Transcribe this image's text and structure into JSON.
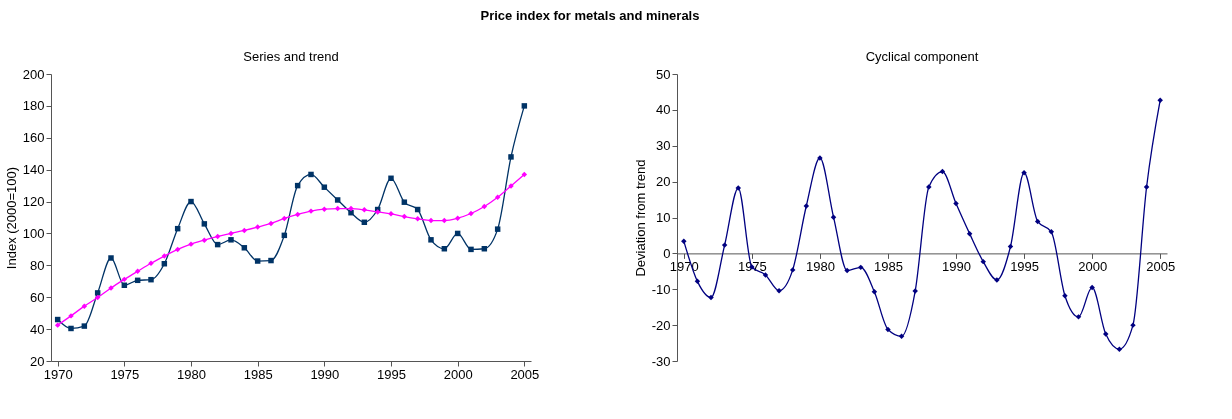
{
  "chart_data": [
    {
      "type": "line",
      "title": "Series and trend",
      "ylabel": "Index (2000=100)",
      "annotations": [
        "Price index for metals and minerals"
      ],
      "x": [
        1970,
        1971,
        1972,
        1973,
        1974,
        1975,
        1976,
        1977,
        1978,
        1979,
        1980,
        1981,
        1982,
        1983,
        1984,
        1985,
        1986,
        1987,
        1988,
        1989,
        1990,
        1991,
        1992,
        1993,
        1994,
        1995,
        1996,
        1997,
        1998,
        1999,
        2000,
        2001,
        2002,
        2003,
        2004,
        2005
      ],
      "series": [
        {
          "color": "#003366",
          "marker": "square",
          "values": [
            46,
            40.4,
            41.9,
            62.7,
            84.6,
            67.5,
            70.6,
            71,
            81,
            103,
            120,
            106,
            93,
            96,
            91,
            82.7,
            83,
            98.8,
            130,
            137,
            129,
            121,
            113,
            107,
            115,
            134.6,
            119.6,
            115,
            96,
            90.4,
            100,
            90,
            90.4,
            102.7,
            148,
            180
          ]
        },
        {
          "color": "#ff00ff",
          "marker": "diamond",
          "values": [
            42.5,
            48.3,
            54.4,
            59.8,
            65.8,
            71.2,
            76.3,
            81.3,
            85.8,
            90,
            93.3,
            95.8,
            98.1,
            100,
            101.9,
            104,
            106.3,
            109.4,
            111.9,
            114,
            115.2,
            115.6,
            115.6,
            114.8,
            113.5,
            112.3,
            110.6,
            109.2,
            108.1,
            108.1,
            109.6,
            112.5,
            116.9,
            122.7,
            129.8,
            137
          ]
        }
      ],
      "xlim": [
        1969.5,
        2005.5
      ],
      "xticks": [
        1970,
        1975,
        1980,
        1985,
        1990,
        1995,
        2000,
        2005
      ],
      "ylim": [
        20,
        200
      ],
      "yticks": [
        20,
        40,
        60,
        80,
        100,
        120,
        140,
        160,
        180,
        200
      ],
      "grid": false
    },
    {
      "type": "line",
      "title": "Cyclical component",
      "ylabel": "Deviation from trend",
      "x": [
        1970,
        1971,
        1972,
        1973,
        1974,
        1975,
        1976,
        1977,
        1978,
        1979,
        1980,
        1981,
        1982,
        1983,
        1984,
        1985,
        1986,
        1987,
        1988,
        1989,
        1990,
        1991,
        1992,
        1993,
        1994,
        1995,
        1996,
        1997,
        1998,
        1999,
        2000,
        2001,
        2002,
        2003,
        2004,
        2005
      ],
      "series": [
        {
          "color": "#000080",
          "marker": "diamond",
          "values": [
            3.4,
            -7.8,
            -12.3,
            2.3,
            18.2,
            -3.8,
            -6,
            -10.4,
            -4.6,
            13.2,
            26.6,
            10.1,
            -4.8,
            -3.9,
            -10.7,
            -21.2,
            -23.1,
            -10.5,
            18.5,
            22.8,
            13.9,
            5.5,
            -2.3,
            -7.4,
            1.9,
            22.5,
            8.9,
            6,
            -11.8,
            -17.7,
            -9.5,
            -22.5,
            -26.7,
            -20,
            18.5,
            42.7
          ]
        }
      ],
      "xlim": [
        1969.5,
        2005.5
      ],
      "xticks": [
        1970,
        1975,
        1980,
        1985,
        1990,
        1995,
        2000,
        2005
      ],
      "ylim": [
        -30,
        50
      ],
      "yticks": [
        -30,
        -20,
        -10,
        0,
        10,
        20,
        30,
        40,
        50
      ],
      "grid": false
    }
  ]
}
